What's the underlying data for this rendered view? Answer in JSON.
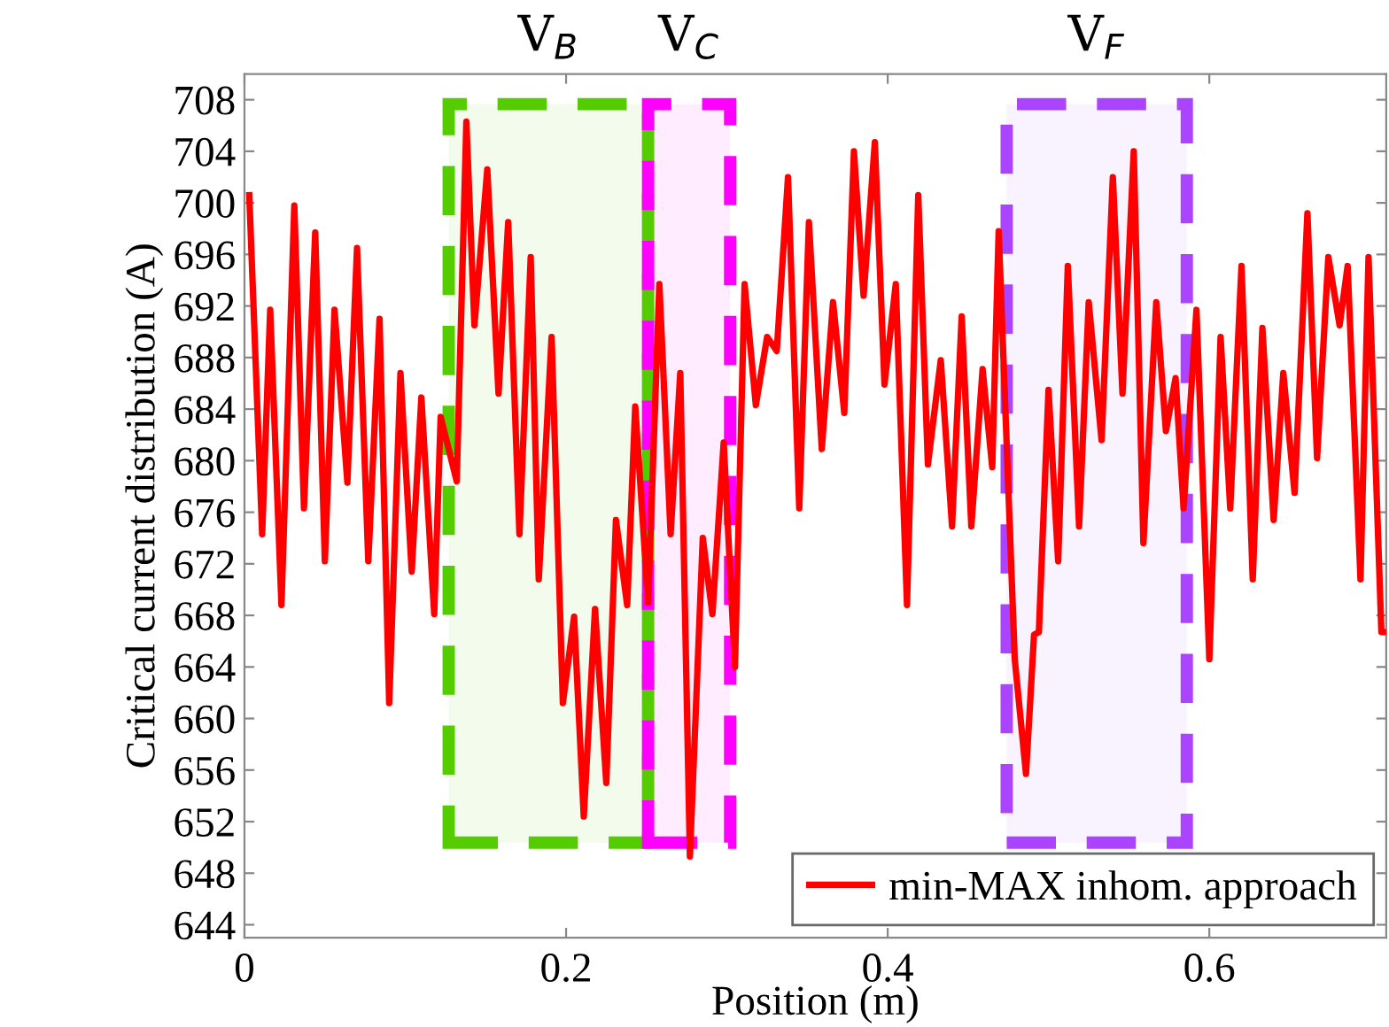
{
  "chart_data": {
    "type": "line",
    "xlabel": "Position (m)",
    "ylabel": "Critical current distribution (A)",
    "xlim": [
      0,
      0.71
    ],
    "xticks": [
      0,
      0.2,
      0.4,
      0.6
    ],
    "ylim": [
      643,
      710
    ],
    "yticks": [
      644,
      648,
      652,
      656,
      660,
      664,
      668,
      672,
      676,
      680,
      684,
      688,
      692,
      696,
      700,
      704,
      708
    ],
    "grid": false,
    "legend": "bottom right",
    "marker": "none",
    "line_style": "solid",
    "series": [
      {
        "name": "min-MAX inhom. approach",
        "color": "#ff0000",
        "x": [
          0.003,
          0.011,
          0.016,
          0.023,
          0.031,
          0.037,
          0.044,
          0.05,
          0.056,
          0.064,
          0.07,
          0.077,
          0.084,
          0.09,
          0.097,
          0.104,
          0.11,
          0.118,
          0.122,
          0.132,
          0.138,
          0.143,
          0.151,
          0.158,
          0.164,
          0.171,
          0.178,
          0.183,
          0.191,
          0.198,
          0.205,
          0.211,
          0.218,
          0.225,
          0.231,
          0.238,
          0.243,
          0.251,
          0.258,
          0.265,
          0.271,
          0.277,
          0.285,
          0.291,
          0.298,
          0.305,
          0.311,
          0.318,
          0.325,
          0.331,
          0.338,
          0.345,
          0.351,
          0.359,
          0.366,
          0.373,
          0.379,
          0.385,
          0.392,
          0.398,
          0.405,
          0.412,
          0.419,
          0.425,
          0.433,
          0.44,
          0.446,
          0.452,
          0.459,
          0.465,
          0.469,
          0.479,
          0.486,
          0.491,
          0.494,
          0.5,
          0.506,
          0.512,
          0.519,
          0.525,
          0.533,
          0.54,
          0.546,
          0.553,
          0.559,
          0.567,
          0.573,
          0.579,
          0.584,
          0.592,
          0.6,
          0.607,
          0.613,
          0.62,
          0.627,
          0.633,
          0.64,
          0.646,
          0.653,
          0.661,
          0.667,
          0.674,
          0.681,
          0.686,
          0.694,
          0.699,
          0.707,
          0.71
        ],
        "values": [
          700.6,
          674.3,
          691.7,
          668.8,
          699.8,
          676.3,
          697.7,
          672.2,
          691.7,
          678.3,
          696.5,
          672.2,
          691,
          661.2,
          686.8,
          671.4,
          684.9,
          668.1,
          683.4,
          678.4,
          706.3,
          690.5,
          702.6,
          685.2,
          698.5,
          674.3,
          695.8,
          670.8,
          689.6,
          661.2,
          667.9,
          652.4,
          668.5,
          655,
          675.4,
          668.8,
          684.2,
          669,
          693.7,
          674.3,
          686.8,
          649.3,
          674,
          668.1,
          681.4,
          664,
          693.7,
          684.3,
          689.6,
          688.5,
          702,
          676.3,
          698.5,
          680.9,
          692.3,
          683.7,
          704,
          692.8,
          704.7,
          685.9,
          693.7,
          668.8,
          700.6,
          679.7,
          687.8,
          674.9,
          691.2,
          674.9,
          687.1,
          679.5,
          697.8,
          664.6,
          655.7,
          666.5,
          666.7,
          685.5,
          672.2,
          695.1,
          674.9,
          692.3,
          681.6,
          702,
          685.2,
          704,
          673.6,
          692.3,
          682.3,
          686.4,
          676.3,
          691.7,
          664.6,
          689.6,
          676.3,
          695.1,
          670.8,
          690.3,
          675.4,
          686.8,
          677.5,
          699.2,
          680.2,
          695.8,
          690.5,
          695.1,
          670.8,
          695.8,
          666.7,
          666.7
        ]
      }
    ],
    "bands": [
      {
        "axis": "x",
        "from": 0.127,
        "to": 0.251,
        "label": "V$_{B}$",
        "color": "#55cc00"
      },
      {
        "axis": "x",
        "from": 0.251,
        "to": 0.302,
        "label": "V$_{C}$",
        "color": "#ff00ff"
      },
      {
        "axis": "x",
        "from": 0.474,
        "to": 0.586,
        "label": "V$_{F}$",
        "color": "#aa44ff"
      }
    ]
  }
}
